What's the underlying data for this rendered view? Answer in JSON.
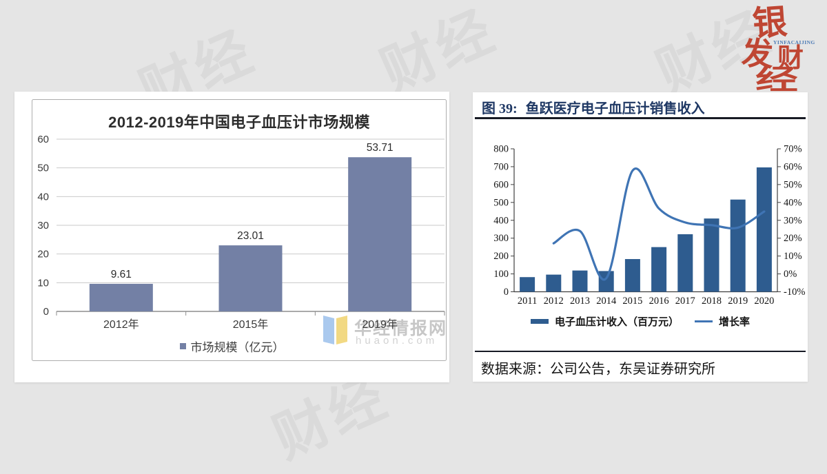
{
  "page": {
    "watermark_text": "财经",
    "background_color": "#e5e5e5"
  },
  "logo": {
    "name": "银发财经",
    "chars": [
      "银",
      "发",
      "财",
      "经"
    ],
    "subtitle": "YINFACAIJING",
    "color": "#bf4633",
    "subtitle_color": "#4a7ab5"
  },
  "left_chart": {
    "title": "2012-2019年中国电子血压计市场规模",
    "legend_label": "市场规模（亿元）",
    "watermark_site": "华经情报网",
    "watermark_domain": "huaon.com"
  },
  "right_chart": {
    "figure_label": "图 39:",
    "title": "鱼跃医疗电子血压计销售收入",
    "legend_bar_label": "电子血压计收入（百万元）",
    "legend_line_label": "增长率",
    "source": "数据来源：公司公告，东吴证券研究所"
  },
  "chart_data": [
    {
      "type": "bar",
      "title": "2012-2019年中国电子血压计市场规模",
      "categories": [
        "2012年",
        "2015年",
        "2019年"
      ],
      "values": [
        9.61,
        23.01,
        53.71
      ],
      "data_labels": [
        "9.61",
        "23.01",
        "53.71"
      ],
      "xlabel": "",
      "ylabel": "",
      "ylim": [
        0,
        60
      ],
      "ytick_step": 10,
      "grid": true,
      "legend": [
        "市场规模（亿元）"
      ],
      "legend_position": "bottom",
      "bar_color": "#7380a5"
    },
    {
      "type": "combo",
      "figure_label": "图 39:",
      "title": "鱼跃医疗电子血压计销售收入",
      "categories": [
        "2011",
        "2012",
        "2013",
        "2014",
        "2015",
        "2016",
        "2017",
        "2018",
        "2019",
        "2020"
      ],
      "series": [
        {
          "name": "电子血压计收入（百万元）",
          "type": "bar",
          "axis": "left",
          "color": "#2e5c8f",
          "values": [
            82,
            96,
            119,
            116,
            183,
            250,
            322,
            410,
            516,
            696
          ]
        },
        {
          "name": "增长率",
          "type": "line",
          "axis": "right",
          "color": "#3f74b4",
          "values": [
            null,
            17.1,
            24.0,
            -2.5,
            57.8,
            36.6,
            28.8,
            27.3,
            25.9,
            34.9
          ]
        }
      ],
      "left_axis": {
        "min": 0,
        "max": 800,
        "step": 100
      },
      "right_axis": {
        "min": -10,
        "max": 70,
        "step": 10,
        "unit": "%"
      },
      "grid": false,
      "legend_position": "bottom",
      "source": "数据来源：公司公告，东吴证券研究所"
    }
  ]
}
